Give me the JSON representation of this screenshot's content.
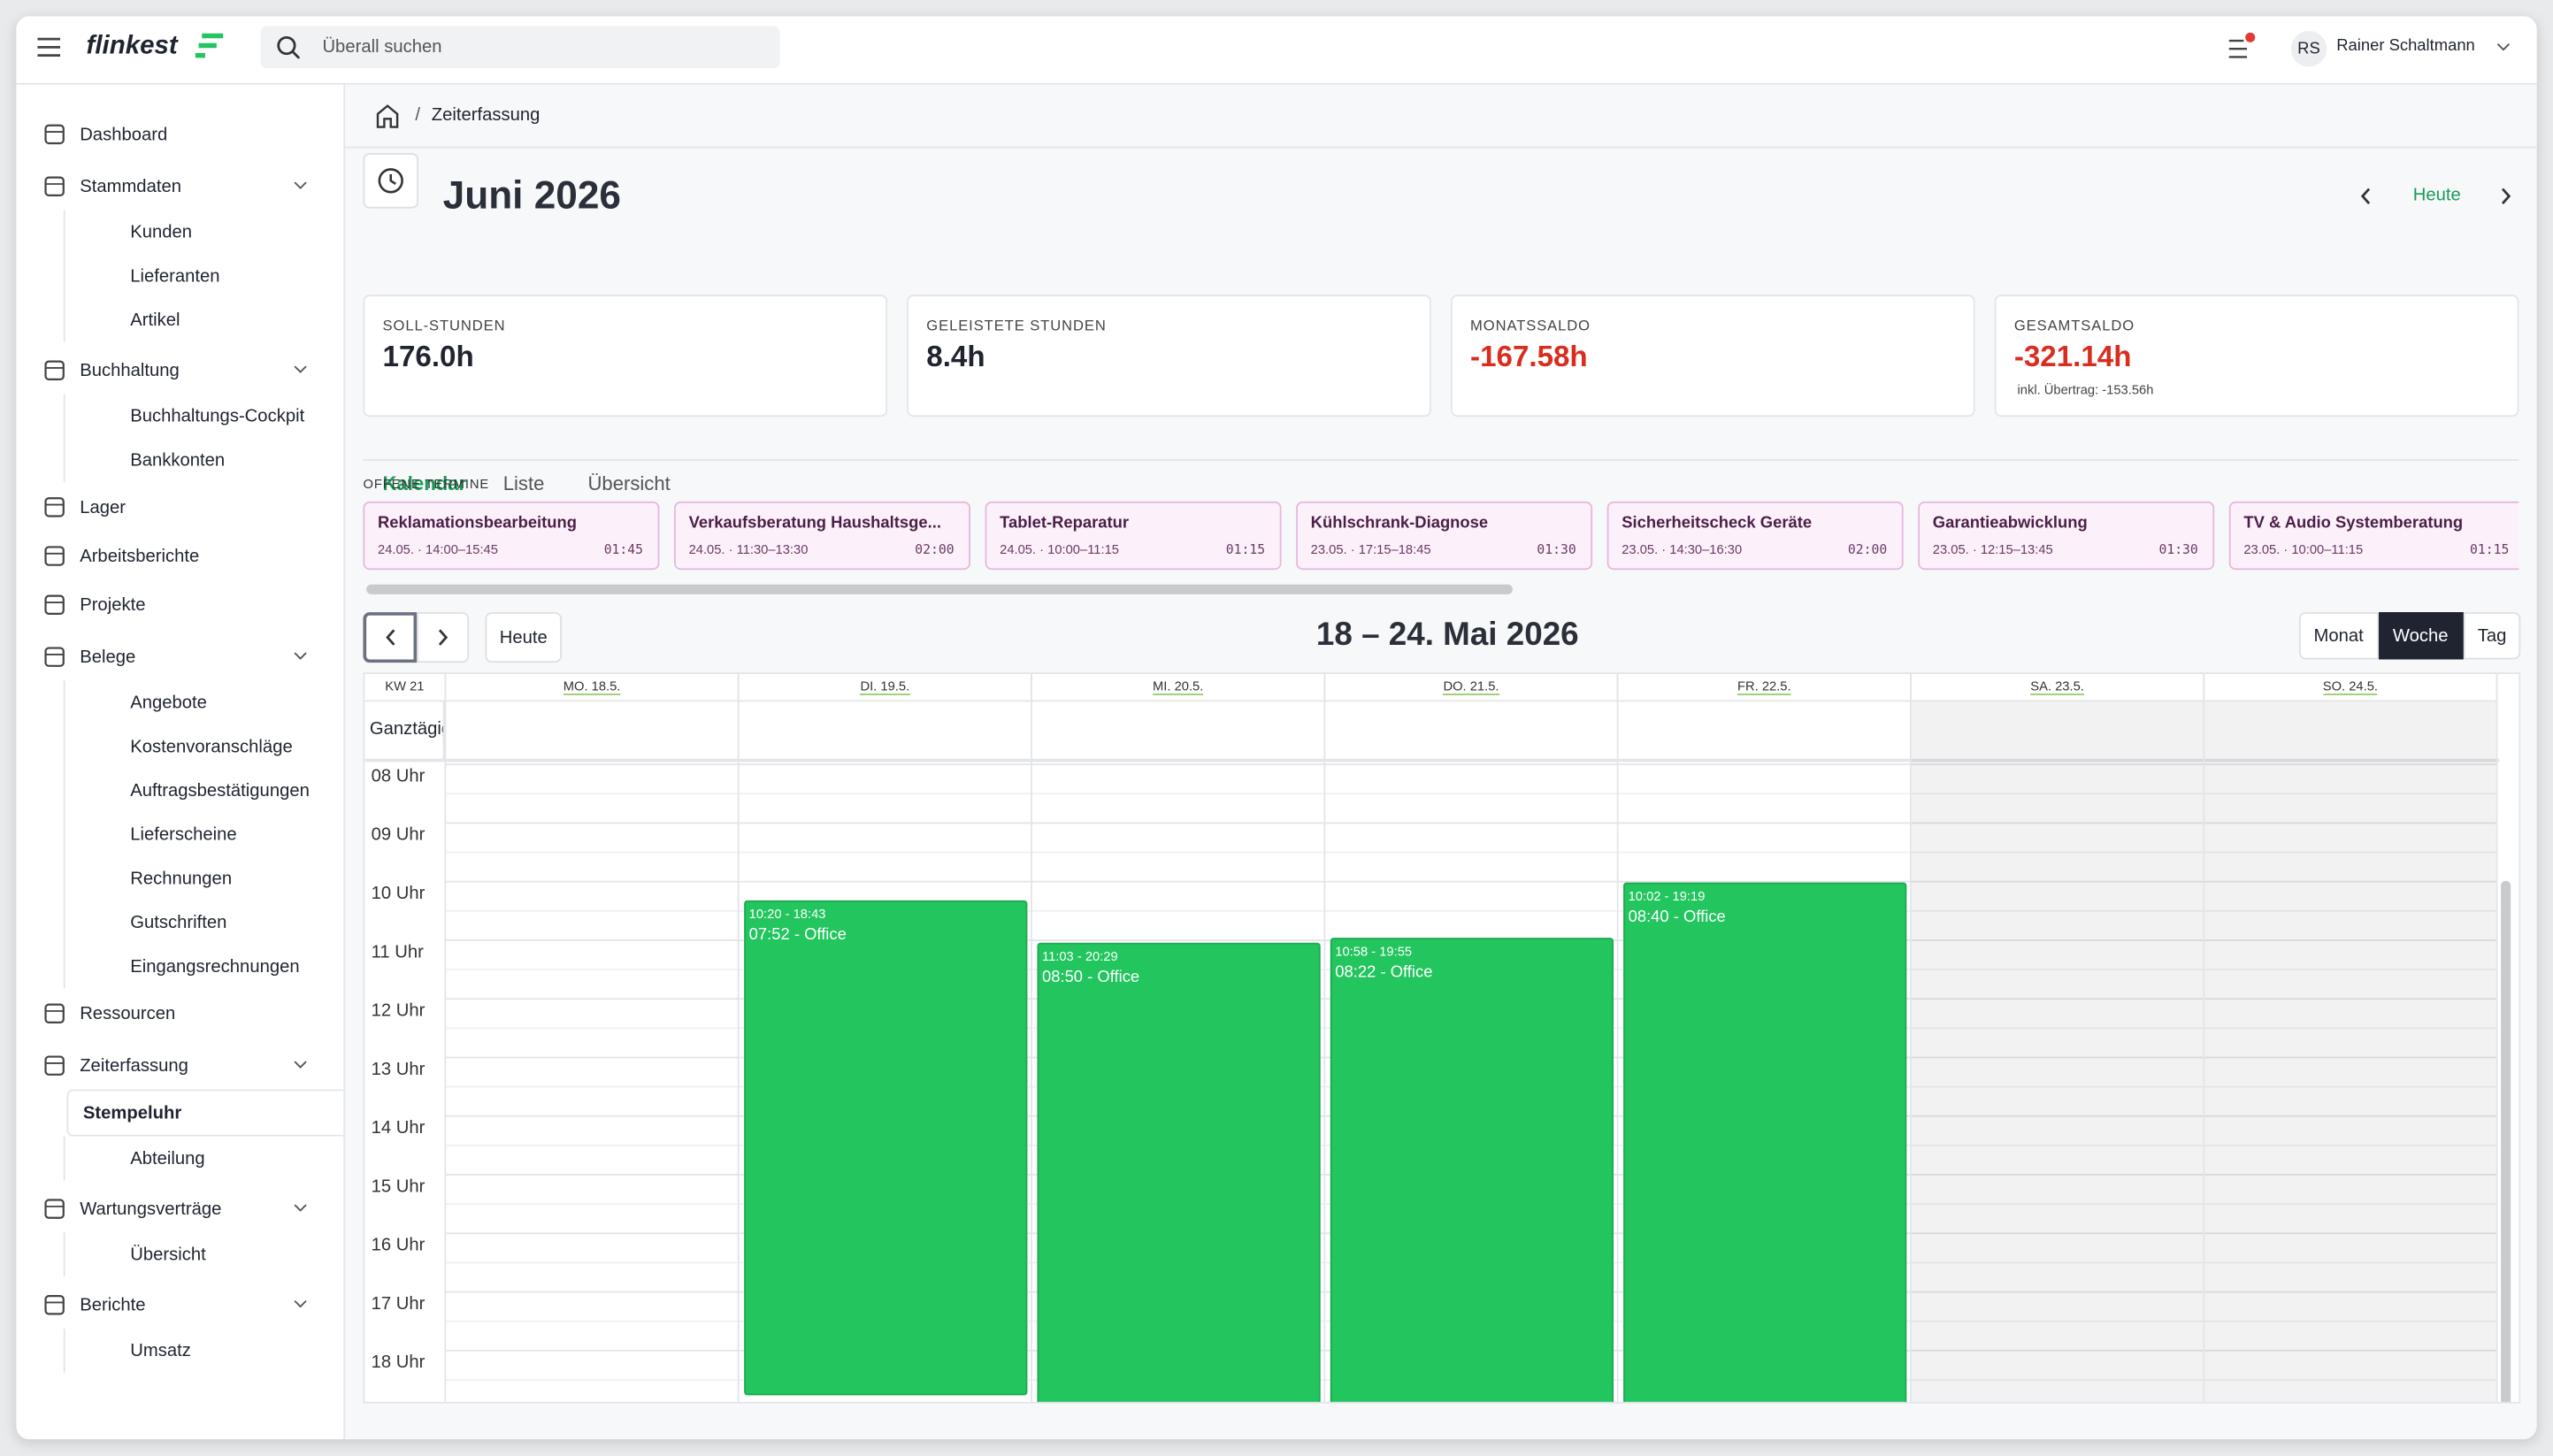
{
  "header": {
    "logo": "flinkest",
    "search_placeholder": "Überall suchen",
    "user_initials": "RS",
    "user_name": "Rainer Schaltmann"
  },
  "sidebar": [
    {
      "label": "Dashboard"
    },
    {
      "label": "Stammdaten",
      "children": [
        {
          "label": "Kunden"
        },
        {
          "label": "Lieferanten"
        },
        {
          "label": "Artikel"
        }
      ]
    },
    {
      "label": "Buchhaltung",
      "children": [
        {
          "label": "Buchhaltungs-Cockpit"
        },
        {
          "label": "Bankkonten"
        }
      ]
    },
    {
      "label": "Lager"
    },
    {
      "label": "Arbeitsberichte"
    },
    {
      "label": "Projekte"
    },
    {
      "label": "Belege",
      "children": [
        {
          "label": "Angebote"
        },
        {
          "label": "Kostenvoranschläge"
        },
        {
          "label": "Auftragsbestätigungen"
        },
        {
          "label": "Lieferscheine"
        },
        {
          "label": "Rechnungen"
        },
        {
          "label": "Gutschriften"
        },
        {
          "label": "Eingangsrechnungen"
        }
      ]
    },
    {
      "label": "Ressourcen"
    },
    {
      "label": "Zeiterfassung",
      "children": [
        {
          "label": "Stempeluhr",
          "active": true
        },
        {
          "label": "Abteilung"
        }
      ]
    },
    {
      "label": "Wartungsverträge",
      "children": [
        {
          "label": "Übersicht"
        }
      ]
    },
    {
      "label": "Berichte",
      "children": [
        {
          "label": "Umsatz"
        }
      ]
    }
  ],
  "breadcrumb": "Zeiterfassung",
  "title": "Juni 2026",
  "today": "Heute",
  "stats": [
    {
      "label": "Soll-Stunden",
      "value": "176.0h"
    },
    {
      "label": "Geleistete Stunden",
      "value": "8.4h"
    },
    {
      "label": "Monatssaldo",
      "value": "-167.58h",
      "color": "#d92d20"
    },
    {
      "label": "Gesamtsaldo",
      "value": "-321.14h",
      "color": "#d92d20",
      "note": "inkl. Übertrag: -153.56h"
    }
  ],
  "tabs": [
    {
      "label": "Kalendar",
      "active": true
    },
    {
      "label": "Liste"
    },
    {
      "label": "Übersicht"
    }
  ],
  "open_title": "Offene Termine",
  "open_appointments": [
    {
      "title": "Reklamationsbearbeitung",
      "when": "24.05. · 14:00–15:45",
      "duration": "01:45"
    },
    {
      "title": "Verkaufsberatung Haushaltsge...",
      "when": "24.05. · 11:30–13:30",
      "duration": "02:00"
    },
    {
      "title": "Tablet-Reparatur",
      "when": "24.05. · 10:00–11:15",
      "duration": "01:15"
    },
    {
      "title": "Kühlschrank-Diagnose",
      "when": "23.05. · 17:15–18:45",
      "duration": "01:30"
    },
    {
      "title": "Sicherheitscheck Geräte",
      "when": "23.05. · 14:30–16:30",
      "duration": "02:00"
    },
    {
      "title": "Garantieabwicklung",
      "when": "23.05. · 12:15–13:45",
      "duration": "01:30"
    },
    {
      "title": "TV & Audio Systemberatung",
      "when": "23.05. · 10:00–11:15",
      "duration": "01:15"
    }
  ],
  "calendar": {
    "today": "Heute",
    "range": "18 – 24. Mai 2026",
    "views": [
      {
        "label": "Monat"
      },
      {
        "label": "Woche",
        "active": true
      },
      {
        "label": "Tag"
      }
    ],
    "week": "KW 21",
    "all_day": "Ganztägig",
    "hours": [
      "08 Uhr",
      "09 Uhr",
      "10 Uhr",
      "11 Uhr",
      "12 Uhr",
      "13 Uhr",
      "14 Uhr",
      "15 Uhr",
      "16 Uhr",
      "17 Uhr",
      "18 Uhr"
    ],
    "days": [
      {
        "label": "MO. 18.5.",
        "events": []
      },
      {
        "label": "DI. 19.5.",
        "events": [
          {
            "time": "10:20 - 18:43",
            "label": "07:52 - Office"
          }
        ]
      },
      {
        "label": "MI. 20.5.",
        "events": [
          {
            "time": "11:03 - 20:29",
            "label": "08:50 - Office"
          }
        ]
      },
      {
        "label": "DO. 21.5.",
        "events": [
          {
            "time": "10:58 - 19:55",
            "label": "08:22 - Office"
          }
        ]
      },
      {
        "label": "FR. 22.5.",
        "events": [
          {
            "time": "10:02 - 19:19",
            "label": "08:40 - Office"
          }
        ]
      },
      {
        "label": "SA. 23.5.",
        "weekend": true,
        "events": []
      },
      {
        "label": "SO. 24.5.",
        "weekend": true,
        "events": []
      }
    ]
  }
}
